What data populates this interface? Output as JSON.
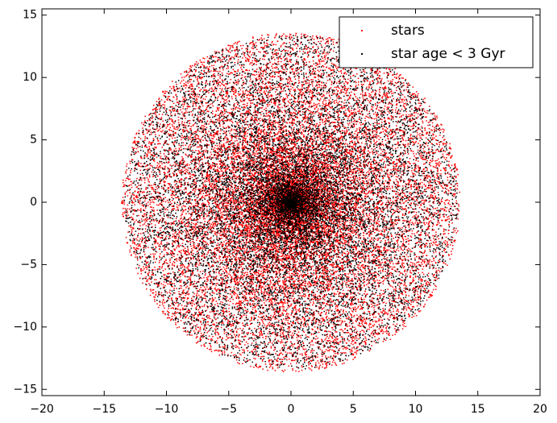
{
  "chart_data": {
    "type": "scatter",
    "title": "",
    "xlabel": "",
    "ylabel": "",
    "xlim": [
      -20,
      20
    ],
    "ylim": [
      -15.5,
      15.5
    ],
    "xticks": [
      -20,
      -15,
      -10,
      -5,
      0,
      5,
      10,
      15,
      20
    ],
    "yticks": [
      -15,
      -10,
      -5,
      0,
      5,
      10,
      15
    ],
    "xtick_labels": [
      "−20",
      "−15",
      "−10",
      "−5",
      "0",
      "5",
      "10",
      "15",
      "20"
    ],
    "ytick_labels": [
      "−15",
      "−10",
      "−5",
      "0",
      "5",
      "10",
      "15"
    ],
    "grid": false,
    "legend_position": "top-right",
    "series": [
      {
        "name": "stars",
        "color": "#ff0000",
        "marker": "point",
        "distribution": "disk",
        "center": [
          0,
          0
        ],
        "radius": 13.6,
        "count": 20000
      },
      {
        "name": "star age < 3 Gyr",
        "color": "#000000",
        "marker": "point",
        "distribution": "disk",
        "center": [
          0,
          0
        ],
        "radius": 13.4,
        "count": 12000
      }
    ]
  }
}
